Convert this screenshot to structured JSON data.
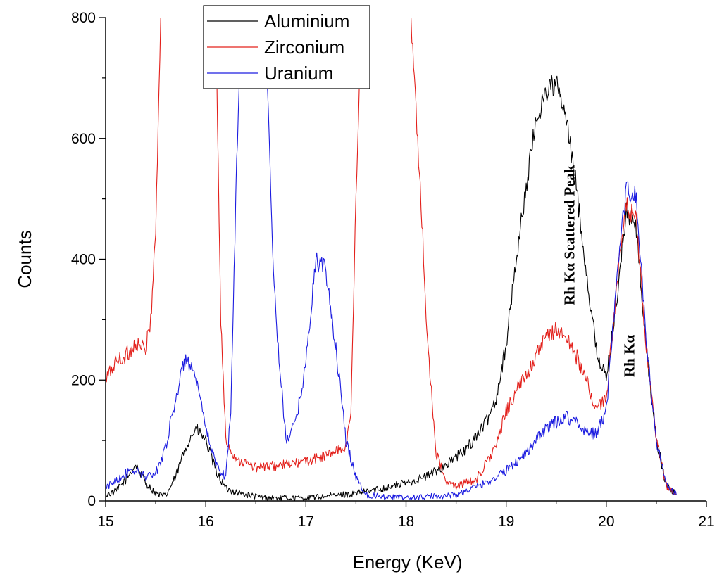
{
  "chart_data": {
    "type": "line",
    "title": "",
    "xlabel": "Energy (KeV)",
    "ylabel": "Counts",
    "xlim": [
      15,
      21
    ],
    "ylim": [
      0,
      800
    ],
    "x_ticks": [
      "15",
      "16",
      "17",
      "18",
      "19",
      "20",
      "21"
    ],
    "y_ticks": [
      "0",
      "200",
      "400",
      "600",
      "800"
    ],
    "grid": false,
    "legend_position": "top-center",
    "series": [
      {
        "name": "Aluminium",
        "color": "#000000",
        "points": [
          [
            15.0,
            10
          ],
          [
            15.1,
            15
          ],
          [
            15.2,
            35
          ],
          [
            15.3,
            60
          ],
          [
            15.4,
            30
          ],
          [
            15.5,
            12
          ],
          [
            15.6,
            8
          ],
          [
            15.7,
            40
          ],
          [
            15.8,
            90
          ],
          [
            15.9,
            120
          ],
          [
            16.0,
            100
          ],
          [
            16.1,
            50
          ],
          [
            16.2,
            20
          ],
          [
            16.4,
            10
          ],
          [
            16.6,
            5
          ],
          [
            17.0,
            5
          ],
          [
            17.5,
            12
          ],
          [
            17.8,
            22
          ],
          [
            18.0,
            30
          ],
          [
            18.2,
            40
          ],
          [
            18.4,
            60
          ],
          [
            18.6,
            85
          ],
          [
            18.8,
            130
          ],
          [
            18.9,
            170
          ],
          [
            19.0,
            260
          ],
          [
            19.1,
            400
          ],
          [
            19.2,
            520
          ],
          [
            19.3,
            630
          ],
          [
            19.4,
            680
          ],
          [
            19.5,
            690
          ],
          [
            19.6,
            630
          ],
          [
            19.7,
            520
          ],
          [
            19.8,
            380
          ],
          [
            19.9,
            250
          ],
          [
            20.0,
            200
          ],
          [
            20.1,
            330
          ],
          [
            20.2,
            480
          ],
          [
            20.3,
            450
          ],
          [
            20.4,
            250
          ],
          [
            20.5,
            100
          ],
          [
            20.6,
            25
          ],
          [
            20.7,
            10
          ]
        ]
      },
      {
        "name": "Zirconium",
        "color": "#e3201b",
        "points": [
          [
            15.0,
            200
          ],
          [
            15.1,
            230
          ],
          [
            15.2,
            240
          ],
          [
            15.3,
            260
          ],
          [
            15.4,
            250
          ],
          [
            15.45,
            300
          ],
          [
            15.5,
            450
          ],
          [
            15.55,
            800
          ],
          [
            16.1,
            800
          ],
          [
            16.15,
            300
          ],
          [
            16.2,
            100
          ],
          [
            16.3,
            70
          ],
          [
            16.5,
            55
          ],
          [
            16.8,
            60
          ],
          [
            17.0,
            65
          ],
          [
            17.2,
            75
          ],
          [
            17.4,
            90
          ],
          [
            17.45,
            150
          ],
          [
            17.5,
            500
          ],
          [
            17.55,
            800
          ],
          [
            18.05,
            800
          ],
          [
            18.1,
            640
          ],
          [
            18.15,
            500
          ],
          [
            18.2,
            300
          ],
          [
            18.3,
            80
          ],
          [
            18.4,
            30
          ],
          [
            18.5,
            25
          ],
          [
            18.7,
            35
          ],
          [
            18.9,
            90
          ],
          [
            19.0,
            150
          ],
          [
            19.1,
            180
          ],
          [
            19.3,
            240
          ],
          [
            19.4,
            270
          ],
          [
            19.5,
            285
          ],
          [
            19.6,
            270
          ],
          [
            19.7,
            240
          ],
          [
            19.8,
            200
          ],
          [
            19.9,
            150
          ],
          [
            20.0,
            170
          ],
          [
            20.1,
            350
          ],
          [
            20.2,
            490
          ],
          [
            20.3,
            460
          ],
          [
            20.4,
            250
          ],
          [
            20.5,
            100
          ],
          [
            20.6,
            25
          ],
          [
            20.7,
            10
          ]
        ]
      },
      {
        "name": "Uranium",
        "color": "#1c1ce0",
        "points": [
          [
            15.0,
            20
          ],
          [
            15.1,
            35
          ],
          [
            15.2,
            45
          ],
          [
            15.3,
            50
          ],
          [
            15.4,
            40
          ],
          [
            15.5,
            45
          ],
          [
            15.6,
            90
          ],
          [
            15.7,
            170
          ],
          [
            15.8,
            240
          ],
          [
            15.9,
            200
          ],
          [
            16.0,
            120
          ],
          [
            16.1,
            60
          ],
          [
            16.2,
            40
          ],
          [
            16.25,
            150
          ],
          [
            16.3,
            500
          ],
          [
            16.35,
            800
          ],
          [
            16.6,
            800
          ],
          [
            16.65,
            500
          ],
          [
            16.7,
            300
          ],
          [
            16.8,
            100
          ],
          [
            16.9,
            130
          ],
          [
            17.0,
            230
          ],
          [
            17.1,
            400
          ],
          [
            17.2,
            380
          ],
          [
            17.3,
            250
          ],
          [
            17.4,
            100
          ],
          [
            17.5,
            40
          ],
          [
            17.6,
            10
          ],
          [
            18.0,
            5
          ],
          [
            18.5,
            10
          ],
          [
            18.8,
            30
          ],
          [
            19.0,
            50
          ],
          [
            19.2,
            80
          ],
          [
            19.4,
            120
          ],
          [
            19.5,
            130
          ],
          [
            19.6,
            140
          ],
          [
            19.7,
            130
          ],
          [
            19.8,
            115
          ],
          [
            19.9,
            110
          ],
          [
            20.0,
            150
          ],
          [
            20.1,
            350
          ],
          [
            20.2,
            520
          ],
          [
            20.3,
            500
          ],
          [
            20.4,
            260
          ],
          [
            20.5,
            100
          ],
          [
            20.6,
            25
          ],
          [
            20.7,
            10
          ]
        ]
      }
    ],
    "annotations": [
      {
        "text": "Rh Kα Scattered Peak",
        "x": 19.68,
        "y": 440,
        "rotation": -90
      },
      {
        "text": "Rh Kα",
        "x": 20.28,
        "y": 240,
        "rotation": -90
      }
    ]
  }
}
